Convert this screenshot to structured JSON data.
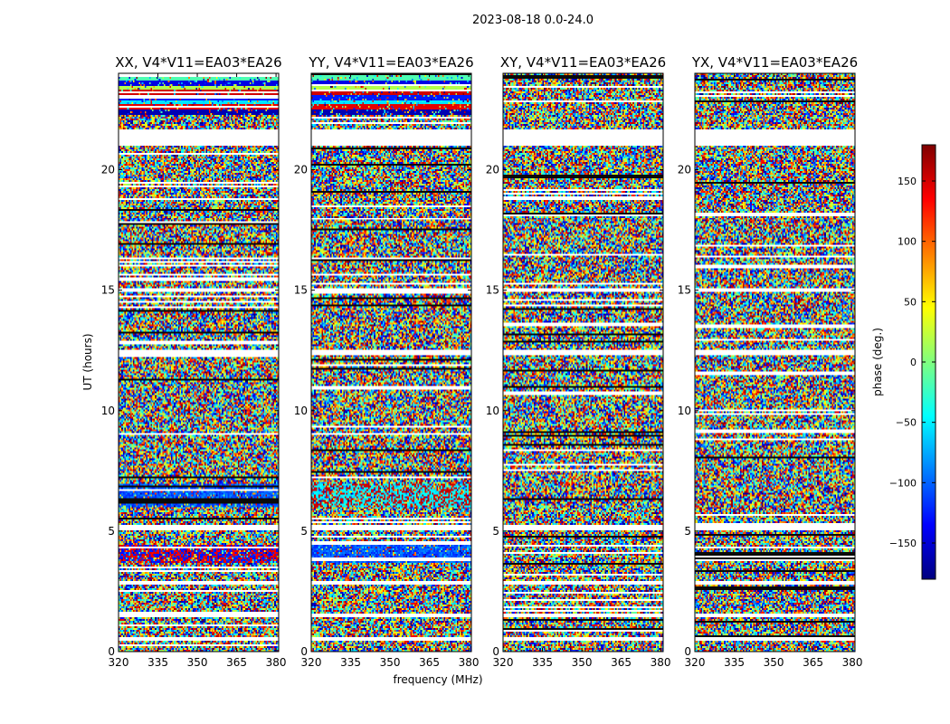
{
  "figure_title": "2023-08-18 0.0-24.0",
  "xlabel": "frequency (MHz)",
  "ylabel": "UT (hours)",
  "colorbar": {
    "label": "phase (deg.)",
    "range": [
      -180,
      180
    ],
    "ticks": [
      -150,
      -100,
      -50,
      0,
      50,
      100,
      150
    ],
    "tick_labels": [
      "−150",
      "−100",
      "−50",
      "0",
      "50",
      "100",
      "150"
    ],
    "colormap": "jet",
    "colors": [
      "#00007f",
      "#0000ff",
      "#007fff",
      "#00ffff",
      "#7fff7f",
      "#ffff00",
      "#ff7f00",
      "#ff0000",
      "#7f0000"
    ]
  },
  "chart_data": [
    {
      "type": "heatmap",
      "title": "XX, V4*V11=EA03*EA26",
      "xlim": [
        320,
        381
      ],
      "ylim": [
        0,
        24
      ],
      "x_ticks": [
        320,
        335,
        350,
        365,
        380
      ],
      "y_ticks": [
        0,
        5,
        10,
        15,
        20
      ],
      "value": "phase (deg.)",
      "blank_ut_bands": [
        [
          0.45,
          0.6
        ],
        [
          1.4,
          1.55
        ],
        [
          2.8,
          2.95
        ],
        [
          5.0,
          5.25
        ],
        [
          12.3,
          12.55
        ],
        [
          14.9,
          15.05
        ],
        [
          21.0,
          21.7
        ]
      ],
      "coherent_ut_bands": [
        [
          3.7,
          4.4,
          "red/blue"
        ],
        [
          6.0,
          7.0,
          "blue"
        ],
        [
          22.3,
          24.0,
          "red/blue/cyan stripes"
        ]
      ]
    },
    {
      "type": "heatmap",
      "title": "YY, V4*V11=EA03*EA26",
      "xlim": [
        320,
        381
      ],
      "ylim": [
        0,
        24
      ],
      "x_ticks": [
        320,
        335,
        350,
        365,
        380
      ],
      "y_ticks": [
        0,
        5,
        10,
        15,
        20
      ],
      "value": "phase (deg.)",
      "blank_ut_bands": [
        [
          0.45,
          0.6
        ],
        [
          1.4,
          1.55
        ],
        [
          2.8,
          2.95
        ],
        [
          5.0,
          5.25
        ],
        [
          12.3,
          12.55
        ],
        [
          14.9,
          15.05
        ],
        [
          21.0,
          21.7
        ]
      ],
      "coherent_ut_bands": [
        [
          3.7,
          4.4,
          "blue"
        ],
        [
          6.0,
          7.0,
          "cyan/red"
        ],
        [
          22.3,
          24.0,
          "red/blue/cyan stripes"
        ]
      ]
    },
    {
      "type": "heatmap",
      "title": "XY, V4*V11=EA03*EA26",
      "xlim": [
        320,
        381
      ],
      "ylim": [
        0,
        24
      ],
      "x_ticks": [
        320,
        335,
        350,
        365,
        380
      ],
      "y_ticks": [
        0,
        5,
        10,
        15,
        20
      ],
      "value": "phase (deg.)",
      "blank_ut_bands": [
        [
          0.45,
          0.6
        ],
        [
          1.4,
          1.55
        ],
        [
          2.8,
          2.95
        ],
        [
          5.0,
          5.25
        ],
        [
          12.3,
          12.55
        ],
        [
          14.9,
          15.05
        ],
        [
          21.0,
          21.7
        ]
      ],
      "coherent_ut_bands": []
    },
    {
      "type": "heatmap",
      "title": "YX, V4*V11=EA03*EA26",
      "xlim": [
        320,
        381
      ],
      "ylim": [
        0,
        24
      ],
      "x_ticks": [
        320,
        335,
        350,
        365,
        380
      ],
      "y_ticks": [
        0,
        5,
        10,
        15,
        20
      ],
      "value": "phase (deg.)",
      "blank_ut_bands": [
        [
          0.45,
          0.6
        ],
        [
          1.4,
          1.55
        ],
        [
          2.8,
          2.95
        ],
        [
          5.0,
          5.25
        ],
        [
          12.3,
          12.55
        ],
        [
          14.9,
          15.05
        ],
        [
          21.0,
          21.7
        ]
      ],
      "coherent_ut_bands": []
    }
  ]
}
